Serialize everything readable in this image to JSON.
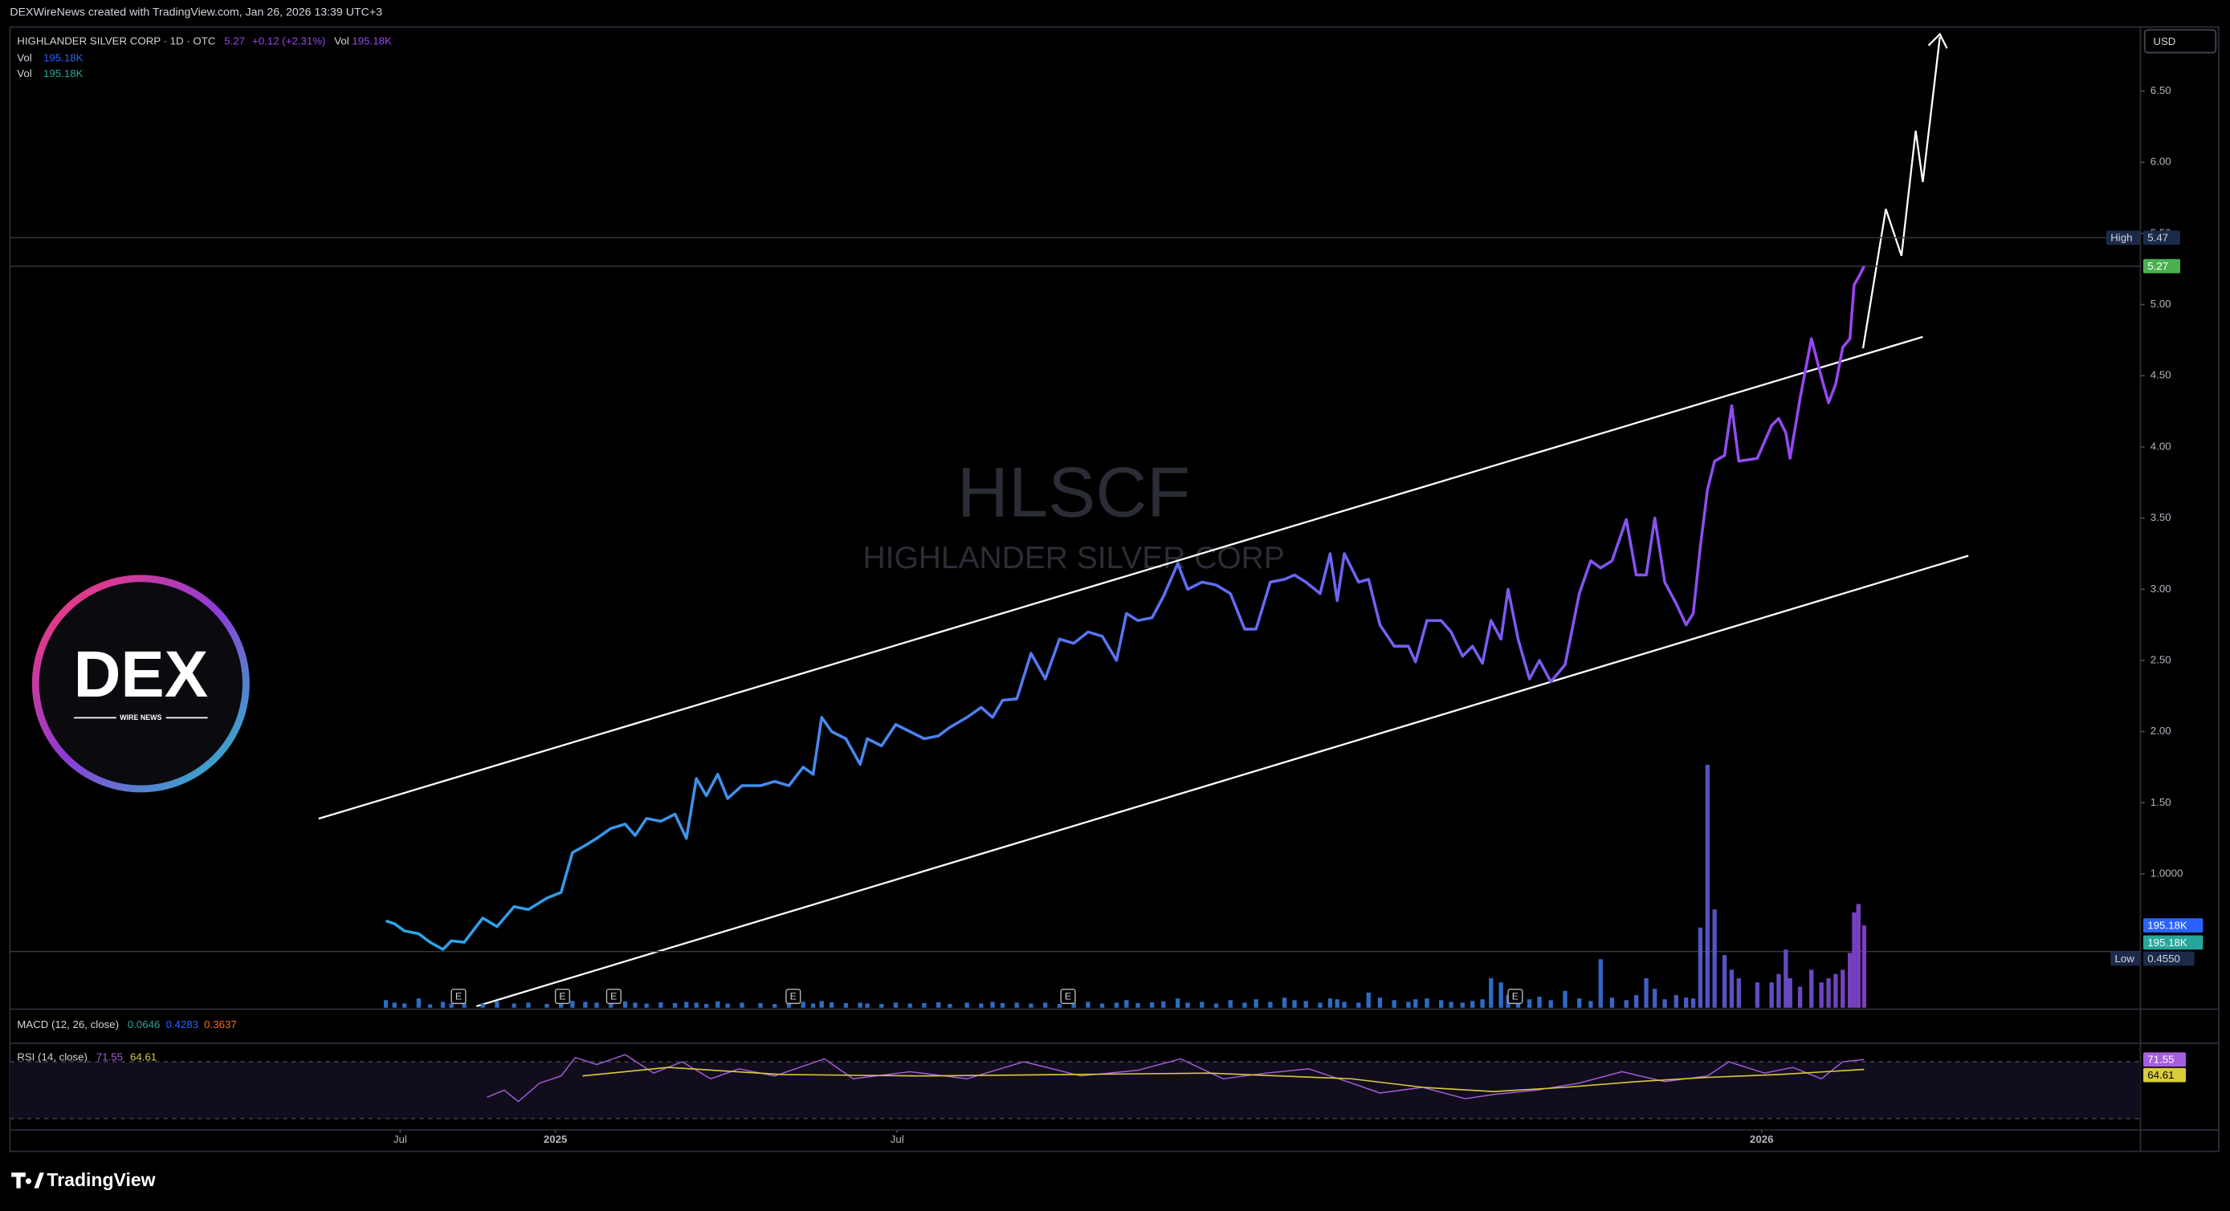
{
  "header": {
    "credit": "DEXWireNews created with TradingView.com, Jan 26, 2026 13:39 UTC+3"
  },
  "chart_data": {
    "type": "line",
    "legend": {
      "change": "+0.12 (+2.31%)",
      "vol_label": "Vol",
      "vol_value": "195.18K"
    },
    "watermark": {
      "ticker": "HLSCF",
      "name": "HIGHLANDER SILVER CORP"
    },
    "currency": "USD",
    "x": [
      0,
      1.5,
      3.25,
      5.75,
      7.75,
      10,
      11.5,
      13.75,
      17,
      19.5,
      22.5,
      25,
      28.25,
      30.75,
      32.75,
      35,
      37,
      39.5,
      42,
      43.75,
      45.75,
      48.25,
      50.75,
      52.75,
      54.5,
      56.25,
      58.25,
      60,
      62.5,
      65.75,
      68.25,
      70.75,
      73.25,
      75,
      76.5,
      78.25,
      80.75,
      83.25,
      84.5,
      87,
      89.5,
      92,
      94.5,
      97,
      99,
      102,
      104.5,
      106.5,
      108.25,
      110.75,
      113.25,
      115.75,
      118.25,
      120.75,
      123.25,
      125.75,
      128.25,
      130,
      132,
      134.5,
      136.5,
      139,
      140.75,
      143.25,
      145.75,
      148.25,
      150.75,
      152.75,
      155.25,
      157.75,
      159.5,
      161.5,
      164,
      165.75,
      167,
      168.25,
      170.75,
      172.5,
      174.5,
      177,
      179.5,
      180.75,
      182.75,
      185.25,
      187,
      189,
      190.75,
      192.5,
      194,
      195.75,
      197,
      198.75,
      200.75,
      202.5,
      204.5,
      207,
      209.5,
      211.5,
      213.25,
      215.25,
      217.75,
      219.5,
      221.25,
      222.75,
      224.5,
      226.5,
      228.25,
      229.5,
      230.75,
      232,
      233.25,
      235,
      236.25,
      237.5,
      240.75,
      243.25,
      244.5,
      245.75,
      246.5,
      248.25,
      250.25,
      252,
      253.25,
      254.5,
      255.75,
      257,
      257.75,
      258.5,
      259.5
    ],
    "xlim": [
      -66,
      308
    ],
    "xticks": [
      {
        "value": 2.5,
        "label": "Jul"
      },
      {
        "value": 29.75,
        "label": "2025"
      },
      {
        "value": 89.75,
        "label": "Jul"
      },
      {
        "value": 241.5,
        "label": "2026"
      }
    ],
    "series": [
      {
        "name": "HIGHLANDER SILVER CORP · 1D · OTC",
        "colors": [
          "#2aa7e6",
          "#5a72f2",
          "#9a44f0"
        ],
        "values": [
          0.67,
          0.65,
          0.6,
          0.58,
          0.52,
          0.47,
          0.53,
          0.52,
          0.69,
          0.63,
          0.77,
          0.75,
          0.83,
          0.87,
          1.15,
          1.2,
          1.25,
          1.32,
          1.35,
          1.27,
          1.39,
          1.37,
          1.42,
          1.25,
          1.67,
          1.55,
          1.7,
          1.53,
          1.62,
          1.62,
          1.65,
          1.62,
          1.75,
          1.7,
          2.1,
          2.0,
          1.95,
          1.77,
          1.95,
          1.9,
          2.05,
          2.0,
          1.95,
          1.97,
          2.03,
          2.1,
          2.17,
          2.1,
          2.22,
          2.23,
          2.55,
          2.37,
          2.65,
          2.62,
          2.7,
          2.67,
          2.5,
          2.83,
          2.78,
          2.8,
          2.95,
          3.18,
          3.0,
          3.05,
          3.03,
          2.97,
          2.72,
          2.72,
          3.05,
          3.07,
          3.1,
          3.05,
          2.97,
          3.25,
          2.92,
          3.25,
          3.05,
          3.07,
          2.75,
          2.6,
          2.6,
          2.49,
          2.78,
          2.78,
          2.7,
          2.53,
          2.6,
          2.48,
          2.78,
          2.65,
          3.0,
          2.65,
          2.37,
          2.5,
          2.35,
          2.47,
          2.97,
          3.2,
          3.15,
          3.2,
          3.49,
          3.1,
          3.1,
          3.5,
          3.05,
          2.9,
          2.75,
          2.83,
          3.3,
          3.7,
          3.9,
          3.94,
          4.29,
          3.9,
          3.92,
          4.15,
          4.2,
          4.1,
          3.92,
          4.34,
          4.76,
          4.49,
          4.31,
          4.44,
          4.7,
          4.76,
          5.14,
          5.19,
          5.27
        ]
      }
    ],
    "ylim": [
      0.06,
      6.94
    ],
    "yticks": [
      {
        "value": 1,
        "label": "1.0000"
      },
      {
        "value": 1.5,
        "label": "1.50"
      },
      {
        "value": 2,
        "label": "2.00"
      },
      {
        "value": 2.5,
        "label": "2.50"
      },
      {
        "value": 3,
        "label": "3.00"
      },
      {
        "value": 3.5,
        "label": "3.50"
      },
      {
        "value": 4,
        "label": "4.00"
      },
      {
        "value": 4.5,
        "label": "4.50"
      },
      {
        "value": 5,
        "label": "5.00"
      },
      {
        "value": 5.5,
        "label": "5.50"
      },
      {
        "value": 6,
        "label": "6.00"
      },
      {
        "value": 6.5,
        "label": "6.50"
      }
    ],
    "high": {
      "label": "High",
      "value": 5.47
    },
    "low": {
      "label": "Low",
      "value": 0.455,
      "value_label": "0.4550"
    },
    "volume": {
      "name": "Vol",
      "ylim": [
        0,
        700
      ],
      "colors": [
        "#2b6cc4",
        "#7a3fc0"
      ],
      "values": [
        18,
        12,
        10,
        22,
        8,
        14,
        10,
        12,
        9,
        15,
        10,
        12,
        9,
        11,
        16,
        14,
        12,
        10,
        15,
        12,
        10,
        13,
        11,
        14,
        12,
        9,
        15,
        10,
        12,
        11,
        9,
        12,
        14,
        10,
        16,
        13,
        11,
        12,
        10,
        9,
        12,
        10,
        11,
        13,
        9,
        12,
        10,
        14,
        11,
        12,
        10,
        12,
        9,
        11,
        14,
        10,
        12,
        18,
        11,
        13,
        15,
        22,
        12,
        14,
        10,
        18,
        12,
        20,
        14,
        24,
        18,
        16,
        12,
        22,
        20,
        14,
        12,
        36,
        24,
        18,
        14,
        20,
        22,
        18,
        14,
        12,
        16,
        20,
        70,
        60,
        30,
        24,
        20,
        26,
        18,
        40,
        22,
        16,
        115,
        24,
        18,
        30,
        70,
        45,
        20,
        30,
        24,
        22,
        190,
        576,
        233,
        125,
        90,
        70,
        60,
        60,
        80,
        138,
        70,
        50,
        90,
        60,
        70,
        80,
        90,
        130,
        226,
        246,
        195.18
      ]
    },
    "events": [
      {
        "x": 12.75,
        "label": "E"
      },
      {
        "x": 31,
        "label": "E"
      },
      {
        "x": 40,
        "label": "E"
      },
      {
        "x": 71.5,
        "label": "E"
      },
      {
        "x": 119.75,
        "label": "E"
      },
      {
        "x": 198.25,
        "label": "E"
      }
    ],
    "macd": {
      "title": "MACD (12, 26, close)",
      "values": [
        0.0646,
        0.4283,
        0.3637
      ],
      "colors": [
        "#26a69a",
        "#2962ff",
        "#ff6d00"
      ]
    },
    "rsi": {
      "title": "RSI (14, close)",
      "ylim": [
        22,
        82
      ],
      "bands": [
        70,
        30
      ],
      "colors": [
        "#a65fe0",
        "#d8cc3c"
      ],
      "x": [
        17.75,
        20.75,
        23.25,
        27,
        30.75,
        33.25,
        37,
        42,
        47,
        52,
        57,
        62,
        68.25,
        77,
        82,
        92,
        102,
        112,
        122,
        132,
        139.5,
        147,
        154.5,
        162,
        169.5,
        174.5,
        182,
        189.5,
        194.5,
        202,
        209.5,
        217,
        224.5,
        232,
        235.75,
        242,
        247,
        252,
        255.75,
        259.5
      ],
      "values": [
        45,
        50,
        42,
        55,
        60,
        73,
        68,
        75,
        62,
        70,
        58,
        65,
        60,
        72,
        58,
        63,
        58,
        70,
        60,
        64,
        72,
        58,
        62,
        65,
        55,
        48,
        52,
        44,
        47,
        50,
        55,
        63,
        56,
        60,
        70,
        62,
        66,
        58,
        70,
        71.55
      ],
      "ma_x": [
        34.5,
        49.5,
        69.5,
        94.5,
        119.5,
        144.5,
        169.5,
        182,
        194.5,
        207,
        219.5,
        232,
        244.5,
        259.5
      ],
      "ma_values": [
        60,
        66,
        61,
        60,
        61,
        62,
        58,
        52,
        49,
        52,
        56,
        59,
        61,
        64.61
      ]
    }
  },
  "logo": {
    "text": "DEX",
    "sub": "WIRE NEWS"
  },
  "footer": {
    "brand": "TradingView"
  }
}
